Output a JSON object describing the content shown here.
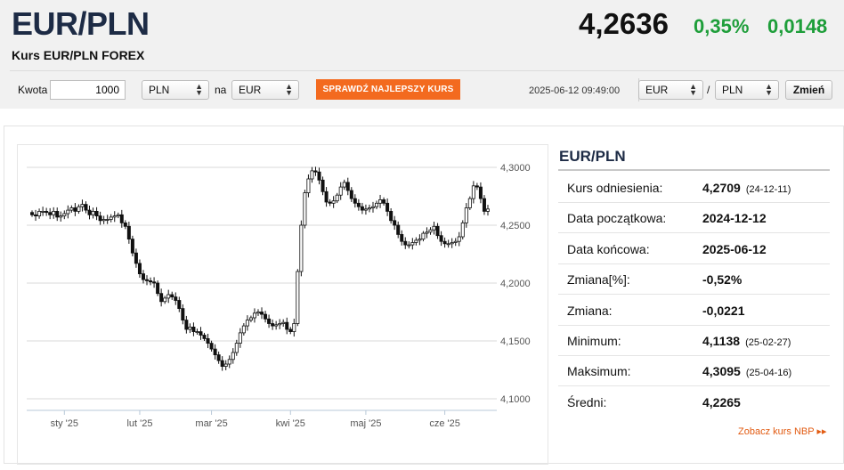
{
  "header": {
    "pair": "EUR/PLN",
    "subtitle": "Kurs EUR/PLN FOREX",
    "price": "4,2636",
    "change_pct": "0,35%",
    "change_abs": "0,0148"
  },
  "converter": {
    "amount_label": "Kwota",
    "amount_value": "1000",
    "from_currency": "PLN",
    "to_label": "na",
    "to_currency": "EUR",
    "best_rate_button": "SPRAWDŹ NAJLEPSZY KURS",
    "timestamp": "2025-06-12 09:49:00",
    "pair_base": "EUR",
    "pair_separator": "/",
    "pair_quote": "PLN",
    "change_button": "Zmień"
  },
  "info": {
    "title": "EUR/PLN",
    "rows": [
      {
        "label": "Kurs odniesienia:",
        "value": "4,2709",
        "date": "(24-12-11)"
      },
      {
        "label": "Data początkowa:",
        "value": "2024-12-12",
        "date": ""
      },
      {
        "label": "Data końcowa:",
        "value": "2025-06-12",
        "date": ""
      },
      {
        "label": "Zmiana[%]:",
        "value": "-0,52%",
        "date": ""
      },
      {
        "label": "Zmiana:",
        "value": "-0,0221",
        "date": ""
      },
      {
        "label": "Minimum:",
        "value": "4,1138",
        "date": "(25-02-27)"
      },
      {
        "label": "Maksimum:",
        "value": "4,3095",
        "date": "(25-04-16)"
      },
      {
        "label": "Średni:",
        "value": "4,2265",
        "date": ""
      }
    ],
    "nbp_link": "Zobacz kurs NBP ▸▸"
  },
  "chart_data": {
    "type": "candlestick",
    "x_tick_labels": [
      "sty '25",
      "lut '25",
      "mar '25",
      "kwi '25",
      "maj '25",
      "cze '25"
    ],
    "y_tick_labels": [
      "4,3000",
      "4,2500",
      "4,2000",
      "4,1500",
      "4,1000"
    ],
    "ylim": [
      4.09,
      4.31
    ],
    "grid": "horizontal",
    "daily_close": [
      4.259,
      4.258,
      4.262,
      4.262,
      4.261,
      4.259,
      4.262,
      4.257,
      4.258,
      4.26,
      4.263,
      4.265,
      4.262,
      4.266,
      4.268,
      4.263,
      4.259,
      4.262,
      4.258,
      4.254,
      4.255,
      4.255,
      4.257,
      4.258,
      4.259,
      4.252,
      4.249,
      4.238,
      4.226,
      4.217,
      4.208,
      4.203,
      4.202,
      4.201,
      4.2,
      4.191,
      4.184,
      4.187,
      4.19,
      4.188,
      4.185,
      4.178,
      4.168,
      4.16,
      4.162,
      4.158,
      4.158,
      4.155,
      4.152,
      4.148,
      4.143,
      4.138,
      4.133,
      4.128,
      4.13,
      4.134,
      4.14,
      4.148,
      4.157,
      4.163,
      4.168,
      4.17,
      4.174,
      4.175,
      4.173,
      4.169,
      4.165,
      4.163,
      4.164,
      4.165,
      4.166,
      4.16,
      4.158,
      4.165,
      4.21,
      4.25,
      4.278,
      4.29,
      4.297,
      4.296,
      4.289,
      4.279,
      4.27,
      4.269,
      4.271,
      4.276,
      4.283,
      4.287,
      4.28,
      4.273,
      4.269,
      4.266,
      4.263,
      4.264,
      4.265,
      4.266,
      4.269,
      4.272,
      4.269,
      4.262,
      4.254,
      4.25,
      4.242,
      4.236,
      4.233,
      4.233,
      4.235,
      4.237,
      4.238,
      4.243,
      4.244,
      4.246,
      4.249,
      4.241,
      4.236,
      4.234,
      4.234,
      4.235,
      4.236,
      4.24,
      4.252,
      4.265,
      4.273,
      4.284,
      4.283,
      4.273,
      4.262,
      4.264
    ]
  },
  "icons": {
    "select_arrow": "chevron-updown-icon",
    "link_arrow": "double-chevron-right-icon"
  },
  "colors": {
    "accent_orange": "#f36a1f",
    "positive_green": "#1e9e3a",
    "title_navy": "#1d2b45"
  }
}
